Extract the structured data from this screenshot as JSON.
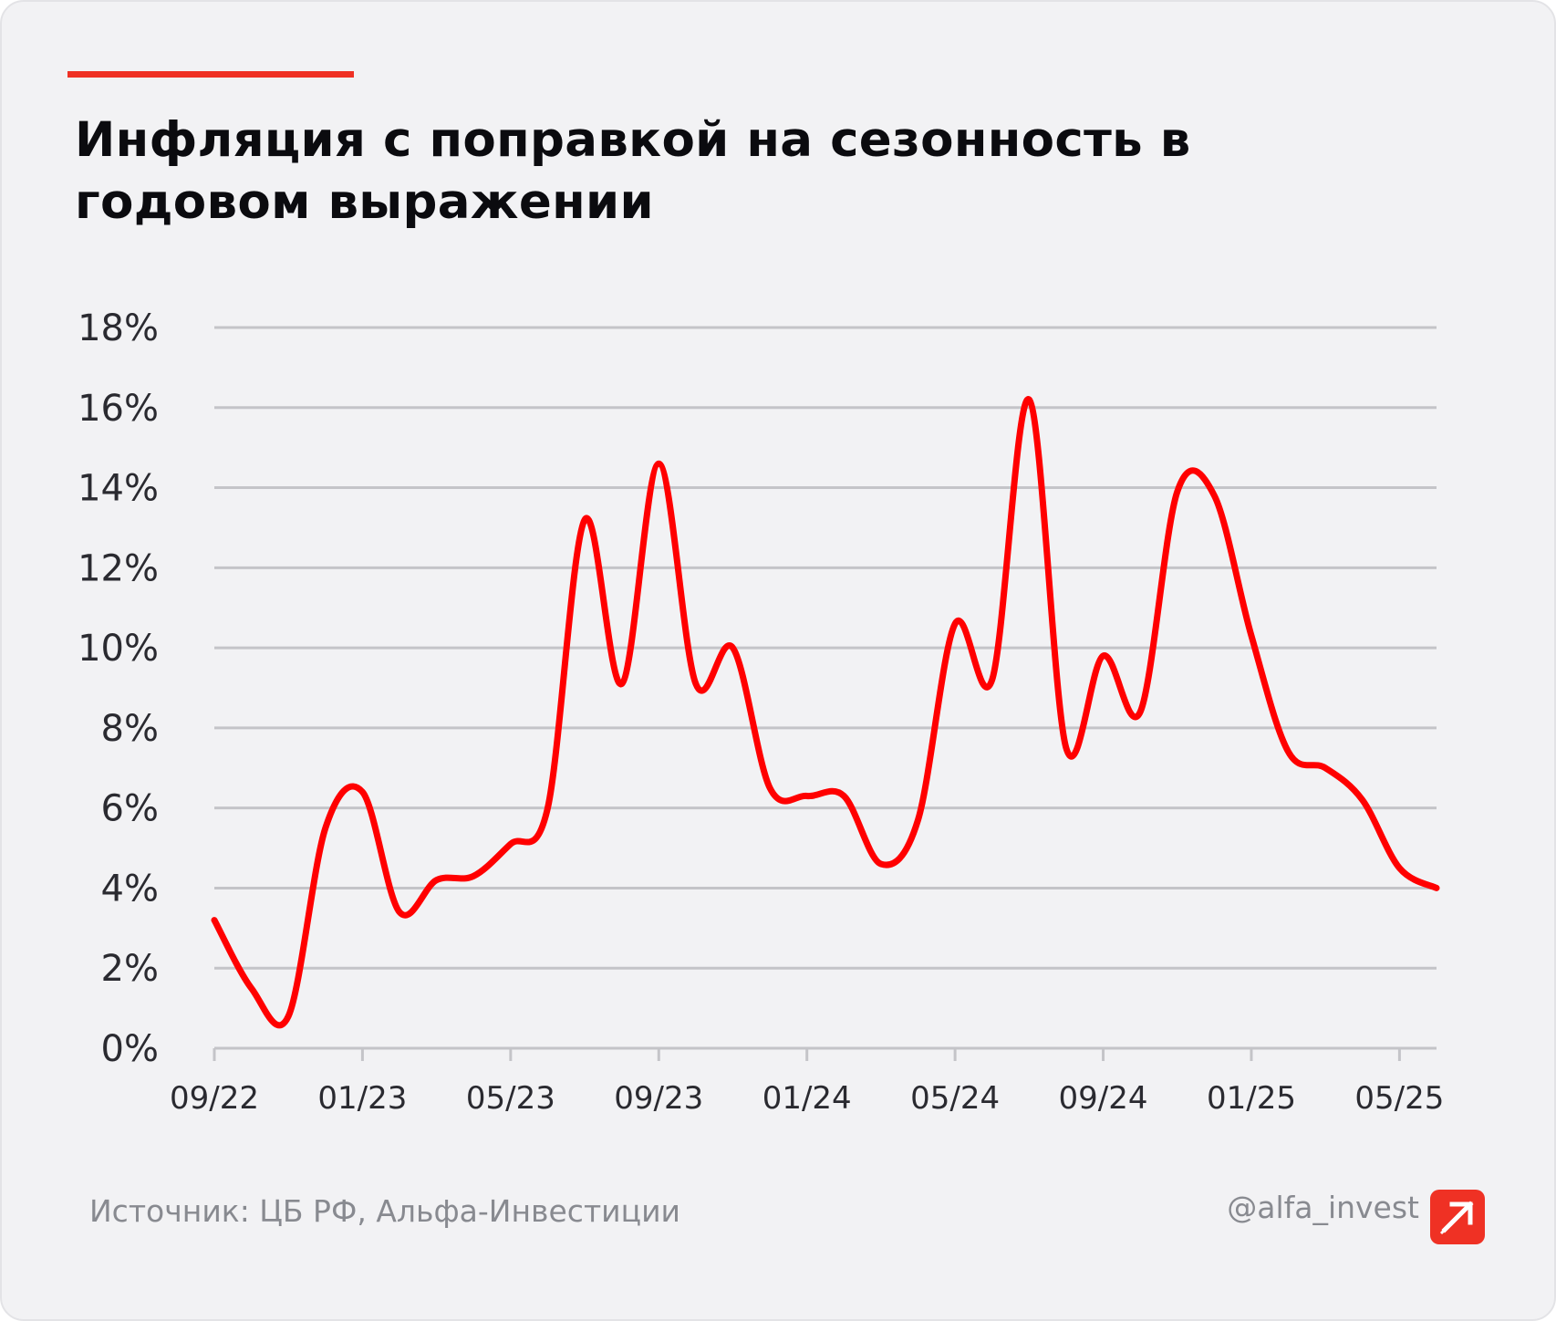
{
  "header": {
    "title_line1": "Инфляция с поправкой на сезонность в",
    "title_line2": "годовом выражении"
  },
  "footer": {
    "source": "Источник: ЦБ РФ, Альфа-Инвестиции",
    "handle": "@alfa_invest"
  },
  "colors": {
    "line": "#ff0000",
    "accent": "#ef3124",
    "grid": "#c4c4c8",
    "tick_text": "#2a2a30"
  },
  "chart_data": {
    "type": "line",
    "title": "Инфляция с поправкой на сезонность в годовом выражении",
    "xlabel": "",
    "ylabel": "",
    "x_ticks": [
      "09/22",
      "01/23",
      "05/23",
      "09/23",
      "01/24",
      "05/24",
      "09/24",
      "01/25",
      "05/25"
    ],
    "y_ticks": [
      "0%",
      "2%",
      "4%",
      "6%",
      "8%",
      "10%",
      "12%",
      "14%",
      "16%",
      "18%"
    ],
    "ylim": [
      0,
      18
    ],
    "xlim": [
      "2022-09",
      "2025-06"
    ],
    "grid": "horizontal",
    "legend": "none",
    "series": [
      {
        "values": [
          [
            "2022-09",
            3.2
          ],
          [
            "2022-10",
            1.5
          ],
          [
            "2022-11",
            0.8
          ],
          [
            "2022-12",
            5.5
          ],
          [
            "2023-01",
            6.4
          ],
          [
            "2023-02",
            3.4
          ],
          [
            "2023-03",
            4.2
          ],
          [
            "2023-04",
            4.3
          ],
          [
            "2023-05",
            5.1
          ],
          [
            "2023-06",
            6.0
          ],
          [
            "2023-07",
            13.2
          ],
          [
            "2023-08",
            9.1
          ],
          [
            "2023-09",
            14.6
          ],
          [
            "2023-10",
            9.1
          ],
          [
            "2023-11",
            10.0
          ],
          [
            "2023-12",
            6.5
          ],
          [
            "2024-01",
            6.3
          ],
          [
            "2024-02",
            6.3
          ],
          [
            "2024-03",
            4.6
          ],
          [
            "2024-04",
            5.7
          ],
          [
            "2024-05",
            10.6
          ],
          [
            "2024-06",
            9.2
          ],
          [
            "2024-07",
            16.2
          ],
          [
            "2024-08",
            7.5
          ],
          [
            "2024-09",
            9.8
          ],
          [
            "2024-10",
            8.4
          ],
          [
            "2024-11",
            13.9
          ],
          [
            "2024-12",
            13.8
          ],
          [
            "2025-01",
            10.3
          ],
          [
            "2025-02",
            7.4
          ],
          [
            "2025-03",
            7.0
          ],
          [
            "2025-04",
            6.2
          ],
          [
            "2025-05",
            4.5
          ],
          [
            "2025-06",
            4.0
          ]
        ]
      }
    ]
  }
}
